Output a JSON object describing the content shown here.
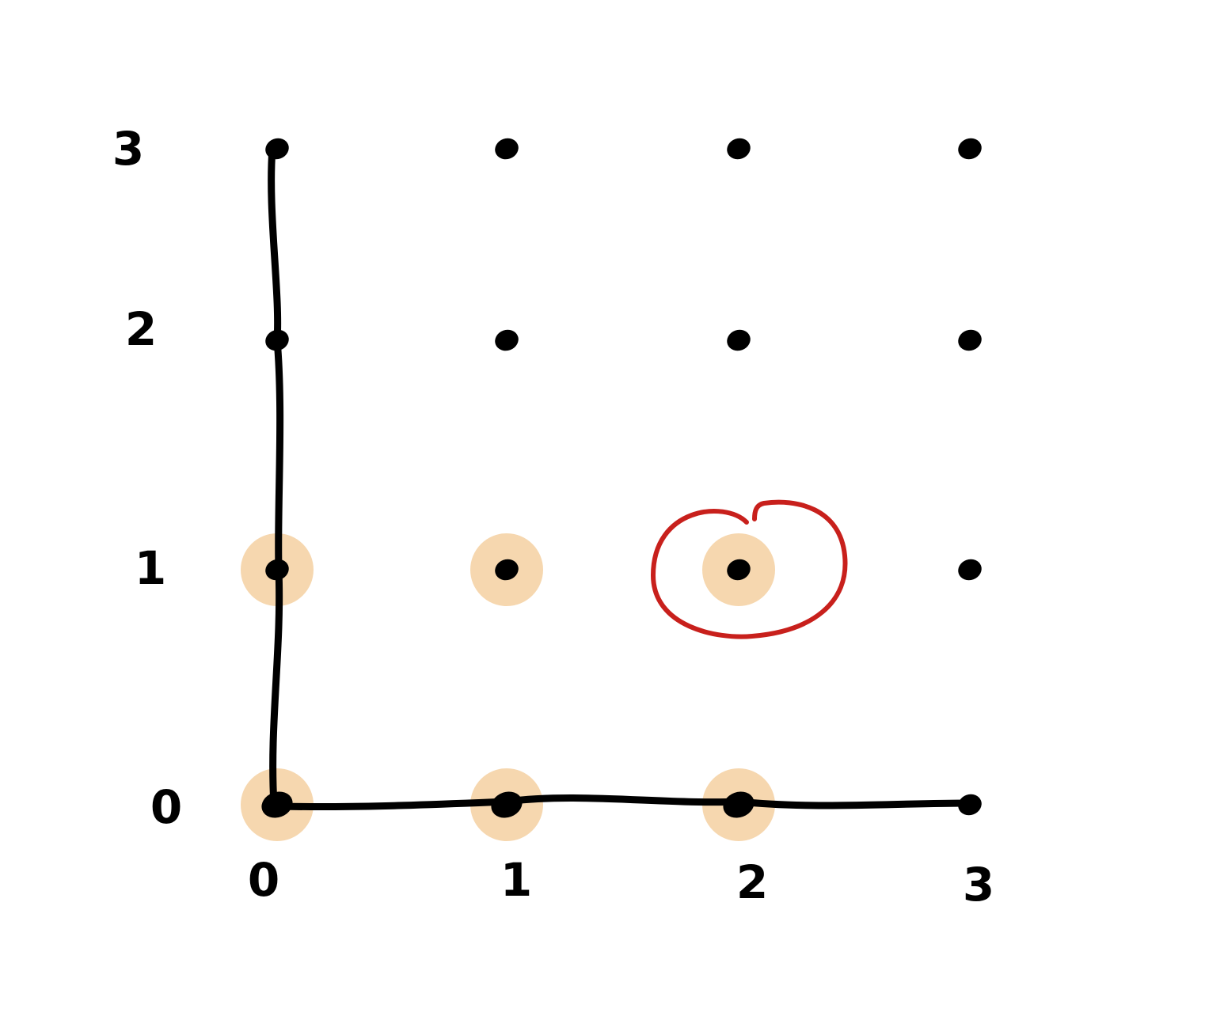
{
  "diagram": {
    "x_tick_labels": [
      "0",
      "1",
      "2",
      "3"
    ],
    "y_tick_labels": [
      "0",
      "1",
      "2",
      "3"
    ],
    "grid_points": [
      {
        "x": 0,
        "y": 0,
        "highlighted": true
      },
      {
        "x": 1,
        "y": 0,
        "highlighted": true
      },
      {
        "x": 2,
        "y": 0,
        "highlighted": true
      },
      {
        "x": 3,
        "y": 0,
        "highlighted": false
      },
      {
        "x": 0,
        "y": 1,
        "highlighted": true
      },
      {
        "x": 1,
        "y": 1,
        "highlighted": true
      },
      {
        "x": 2,
        "y": 1,
        "highlighted": true
      },
      {
        "x": 3,
        "y": 1,
        "highlighted": false
      },
      {
        "x": 0,
        "y": 2,
        "highlighted": false
      },
      {
        "x": 1,
        "y": 2,
        "highlighted": false
      },
      {
        "x": 2,
        "y": 2,
        "highlighted": false
      },
      {
        "x": 3,
        "y": 2,
        "highlighted": false
      },
      {
        "x": 0,
        "y": 3,
        "highlighted": false
      },
      {
        "x": 1,
        "y": 3,
        "highlighted": false
      },
      {
        "x": 2,
        "y": 3,
        "highlighted": false
      },
      {
        "x": 3,
        "y": 3,
        "highlighted": false
      }
    ],
    "axes": {
      "vertical_line": {
        "x": 0,
        "from_y": 0,
        "to_y": 3
      },
      "horizontal_line": {
        "y": 0,
        "from_x": 0,
        "to_x": 3
      }
    },
    "circled_point": {
      "x": 2,
      "y": 1
    },
    "colors": {
      "ink": "#000000",
      "highlight": "#f5d3a6",
      "circle": "#c8201c"
    }
  }
}
